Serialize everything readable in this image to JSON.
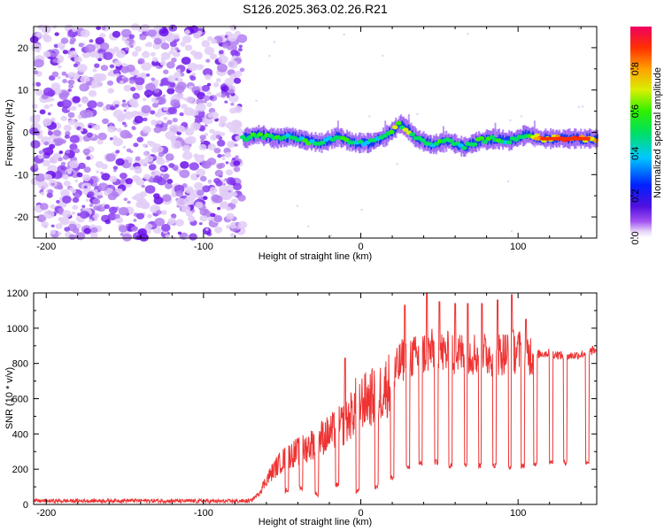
{
  "title": "S126.2025.363.02.26.R21",
  "chart_data": [
    {
      "type": "heatmap",
      "xlabel": "Height of straight line (km)",
      "ylabel": "Frequency (Hz)",
      "xlim": [
        -208,
        150
      ],
      "ylim": [
        -25,
        25
      ],
      "xticks": [
        -200,
        -100,
        0,
        100
      ],
      "xtick_labels": [
        "-200",
        "-100",
        "0",
        "100"
      ],
      "yticks": [
        -20,
        -10,
        0,
        10,
        20
      ],
      "ytick_labels": [
        "-20",
        "-10",
        "0",
        "10",
        "20"
      ],
      "grid": false,
      "colorbar": {
        "label": "Normalized spectral amplitude",
        "range": [
          0,
          1
        ],
        "ticks": [
          0.0,
          0.2,
          0.4,
          0.6,
          0.8
        ],
        "tick_labels": [
          "0.0",
          "0.2",
          "0.4",
          "0.6",
          "0.8"
        ]
      },
      "noise_region_x": [
        -208,
        -75
      ],
      "signal_ridge": {
        "x": [
          -75,
          -65,
          -55,
          -45,
          -35,
          -25,
          -15,
          -5,
          5,
          15,
          25,
          30,
          35,
          45,
          55,
          65,
          75,
          85,
          95,
          105,
          115,
          125,
          135,
          150
        ],
        "frequency": [
          -1.5,
          -0.5,
          -1.5,
          -1.0,
          -2.0,
          -2.5,
          -1.0,
          -2.5,
          -2.5,
          -1.0,
          2.0,
          0.5,
          -1.5,
          -3.0,
          -2.0,
          -3.5,
          -2.0,
          -1.5,
          -2.0,
          -0.5,
          -1.5,
          -1.5,
          -1.5,
          -1.5
        ],
        "amplitude": [
          0.45,
          0.55,
          0.45,
          0.5,
          0.5,
          0.45,
          0.5,
          0.45,
          0.45,
          0.5,
          0.6,
          0.65,
          0.5,
          0.45,
          0.5,
          0.45,
          0.5,
          0.5,
          0.45,
          0.55,
          0.8,
          0.85,
          0.9,
          0.85
        ]
      }
    },
    {
      "type": "line",
      "xlabel": "Height of straight line (km)",
      "ylabel": "SNR (10 * v/v)",
      "xlim": [
        -208,
        150
      ],
      "ylim": [
        0,
        1200
      ],
      "xticks": [
        -200,
        -100,
        0,
        100
      ],
      "xtick_labels": [
        "-200",
        "-100",
        "0",
        "100"
      ],
      "yticks": [
        0,
        200,
        400,
        600,
        800,
        1000,
        1200
      ],
      "ytick_labels": [
        "0",
        "200",
        "400",
        "600",
        "800",
        "1000",
        "1200"
      ],
      "grid": false,
      "color": "#ee3333",
      "series": [
        {
          "name": "SNR",
          "x": [
            -208,
            -180,
            -150,
            -120,
            -90,
            -70,
            -65,
            -60,
            -55,
            -50,
            -45,
            -40,
            -35,
            -30,
            -25,
            -20,
            -15,
            -10,
            -5,
            -2,
            0,
            5,
            10,
            15,
            20,
            25,
            30,
            35,
            40,
            45,
            50,
            60,
            70,
            80,
            90,
            100,
            110,
            120,
            130,
            140,
            150
          ],
          "values": [
            20,
            20,
            22,
            20,
            18,
            20,
            60,
            140,
            200,
            250,
            280,
            300,
            320,
            350,
            380,
            400,
            430,
            460,
            520,
            600,
            580,
            600,
            620,
            660,
            700,
            800,
            850,
            830,
            860,
            870,
            860,
            850,
            860,
            850,
            860,
            870,
            850,
            860,
            840,
            850,
            880
          ],
          "dips_x": [
            -47,
            -38,
            -28,
            -15,
            -2,
            10,
            20,
            30,
            38,
            48,
            57,
            67,
            76,
            85,
            95,
            103,
            111,
            121,
            130,
            144
          ],
          "dips_y": [
            80,
            90,
            60,
            110,
            70,
            100,
            150,
            210,
            230,
            240,
            220,
            230,
            220,
            220,
            210,
            220,
            230,
            240,
            240,
            230
          ],
          "spikes_x": [
            -10,
            28,
            42,
            50,
            60,
            68,
            77,
            87,
            96,
            105
          ],
          "spikes_y": [
            830,
            1130,
            1200,
            1150,
            1140,
            1140,
            1140,
            1160,
            1190,
            1050
          ]
        }
      ]
    }
  ]
}
